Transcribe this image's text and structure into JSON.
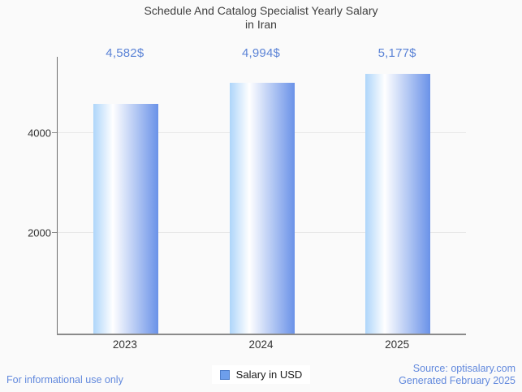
{
  "header": {
    "title_line1": "Schedule And Catalog Specialist Yearly Salary",
    "title_line2": "in Iran"
  },
  "chart_data": {
    "type": "bar",
    "title": "Schedule And Catalog Specialist Yearly Salary in Iran",
    "categories": [
      "2023",
      "2024",
      "2025"
    ],
    "values": [
      4582,
      4994,
      5177
    ],
    "value_labels": [
      "4,582$",
      "4,994$",
      "5,177$"
    ],
    "series_name": "Salary in USD",
    "xlabel": "",
    "ylabel": "",
    "yticks": [
      4000,
      2000
    ],
    "ylim": [
      0,
      5516
    ],
    "grid": "horizontal",
    "legend_position": "bottom"
  },
  "legend": {
    "label": "Salary in USD"
  },
  "footer": {
    "disclaimer": "For informational use only",
    "source": "Source: optisalary.com",
    "generated": "Generated February 2025"
  },
  "colors": {
    "background": "#fafafa",
    "title_text": "#3e3e3e",
    "accent_text": "#5b83d6",
    "footer_text": "#6289dd",
    "bar_left": "#aed5fa",
    "bar_mid": "#ffffff",
    "bar_right": "#6a92e8",
    "legend_swatch": "#6d9eeb",
    "axis": "#6e6e6e",
    "axis_x": "#8a8a8a",
    "gridline": "#e7e7e7"
  }
}
